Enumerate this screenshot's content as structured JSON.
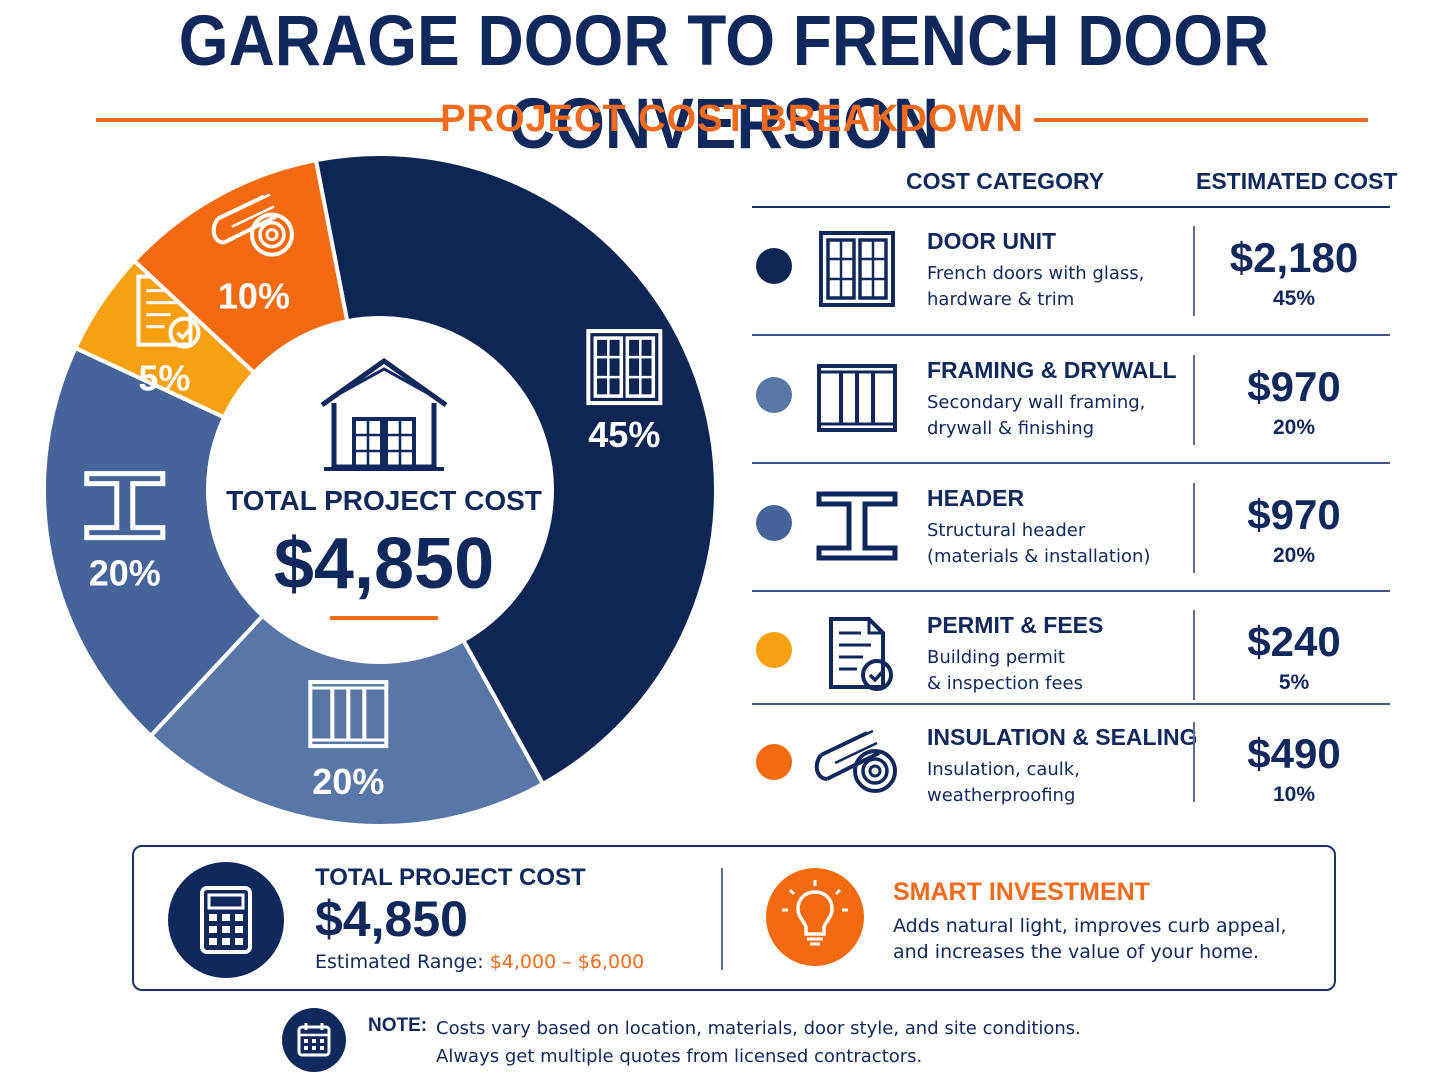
{
  "header": {
    "title": "GARAGE DOOR TO FRENCH DOOR CONVERSION",
    "subtitle": "PROJECT COST BREAKDOWN"
  },
  "chart_data": {
    "type": "pie",
    "style": "donut",
    "center_label": "TOTAL PROJECT COST",
    "center_value": "$4,850",
    "slices": [
      {
        "label": "DOOR UNIT",
        "value": 45,
        "pct_label": "45%",
        "color": "#0f2654",
        "icon": "french-door-icon"
      },
      {
        "label": "FRAMING & DRYWALL",
        "value": 20,
        "pct_label": "20%",
        "color": "#5876a6",
        "icon": "wall-framing-icon"
      },
      {
        "label": "HEADER",
        "value": 20,
        "pct_label": "20%",
        "color": "#47649a",
        "icon": "i-beam-icon"
      },
      {
        "label": "PERMIT & FEES",
        "value": 5,
        "pct_label": "5%",
        "color": "#f7a011",
        "icon": "permit-document-icon"
      },
      {
        "label": "INSULATION & SEALING",
        "value": 10,
        "pct_label": "10%",
        "color": "#f36a10",
        "icon": "insulation-roll-icon"
      }
    ]
  },
  "table": {
    "col_category": "COST CATEGORY",
    "col_cost": "ESTIMATED COST",
    "rows": [
      {
        "name": "DOOR UNIT",
        "desc1": "French doors with glass,",
        "desc2": "hardware & trim",
        "cost": "$2,180",
        "pct": "45%",
        "color": "#0f2654",
        "icon": "french-door-icon"
      },
      {
        "name": "FRAMING & DRYWALL",
        "desc1": "Secondary wall framing,",
        "desc2": "drywall & finishing",
        "cost": "$970",
        "pct": "20%",
        "color": "#5876a6",
        "icon": "wall-framing-icon"
      },
      {
        "name": "HEADER",
        "desc1": "Structural header",
        "desc2": "(materials & installation)",
        "cost": "$970",
        "pct": "20%",
        "color": "#47649a",
        "icon": "i-beam-icon"
      },
      {
        "name": "PERMIT & FEES",
        "desc1": "Building permit",
        "desc2": "& inspection fees",
        "cost": "$240",
        "pct": "5%",
        "color": "#f7a011",
        "icon": "permit-document-icon"
      },
      {
        "name": "INSULATION & SEALING",
        "desc1": "Insulation, caulk,",
        "desc2": "weatherproofing",
        "cost": "$490",
        "pct": "10%",
        "color": "#f36a10",
        "icon": "insulation-roll-icon"
      }
    ]
  },
  "summary": {
    "label": "TOTAL PROJECT COST",
    "value": "$4,850",
    "range_label": "Estimated Range:",
    "range_value": "$4,000 – $6,000",
    "smart_title": "SMART INVESTMENT",
    "smart_desc": "Adds natural light, improves curb appeal, and increases the value of your home."
  },
  "note": {
    "label": "NOTE:",
    "line1": "Costs vary based on location, materials, door style, and site conditions.",
    "line2": "Always get multiple quotes from licensed contractors."
  }
}
